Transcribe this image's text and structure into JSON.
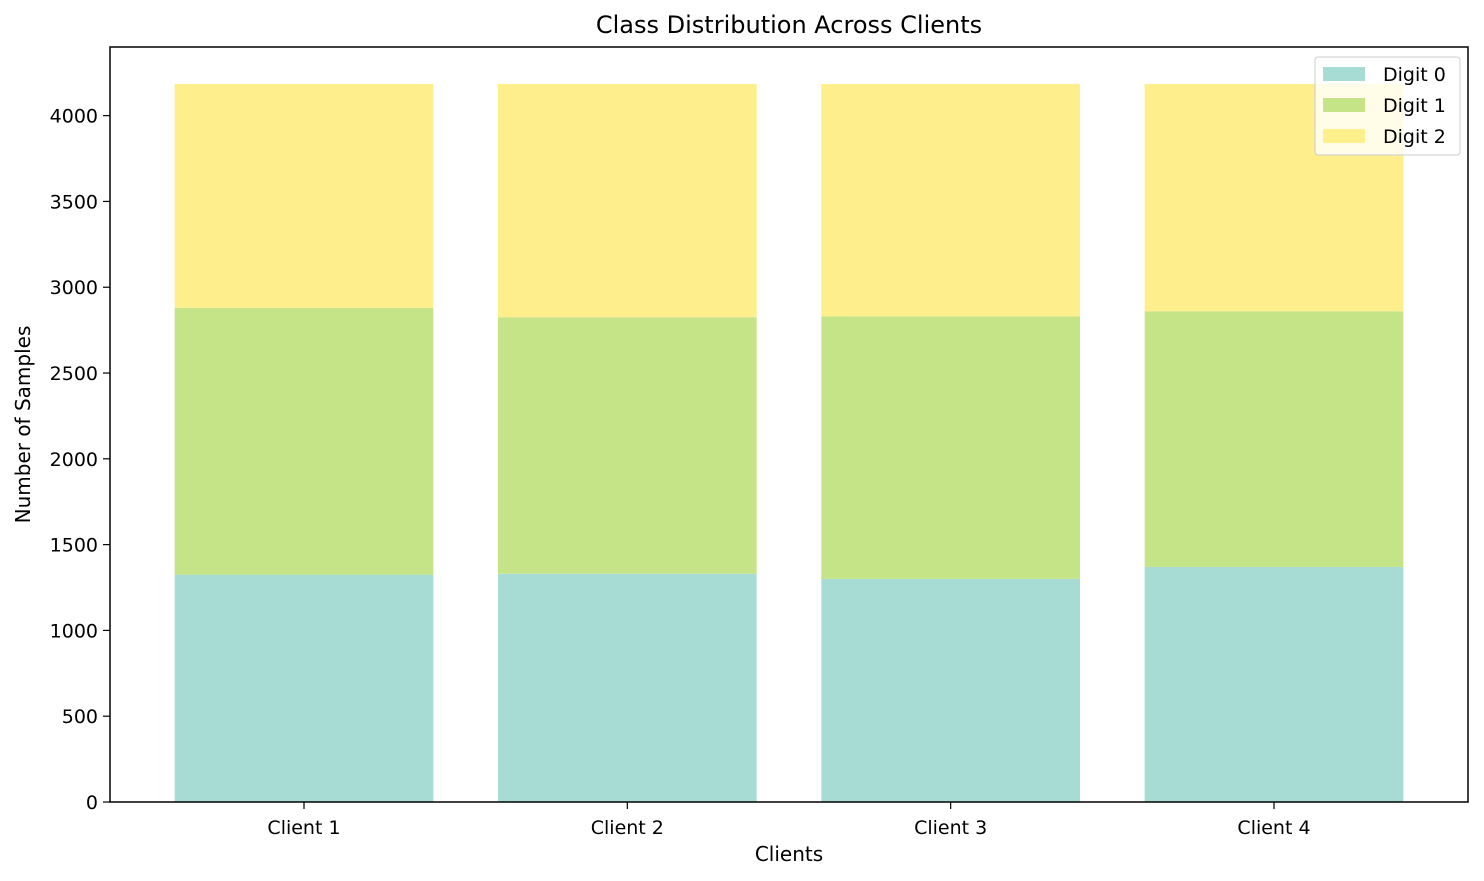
{
  "chart_data": {
    "type": "bar",
    "stacked": true,
    "title": "Class Distribution Across Clients",
    "xlabel": "Clients",
    "ylabel": "Number of Samples",
    "categories": [
      "Client 1",
      "Client 2",
      "Client 3",
      "Client 4"
    ],
    "series": [
      {
        "name": "Digit 0",
        "values": [
          1325,
          1330,
          1300,
          1370
        ],
        "color": "#a6dcd4"
      },
      {
        "name": "Digit 1",
        "values": [
          1555,
          1495,
          1530,
          1490
        ],
        "color": "#c5e488"
      },
      {
        "name": "Digit 2",
        "values": [
          1305,
          1360,
          1355,
          1325
        ],
        "color": "#ffee8c"
      }
    ],
    "ylim": [
      0,
      4400
    ],
    "yticks": [
      0,
      500,
      1000,
      1500,
      2000,
      2500,
      3000,
      3500,
      4000
    ],
    "grid": false,
    "legend_position": "top-right"
  }
}
